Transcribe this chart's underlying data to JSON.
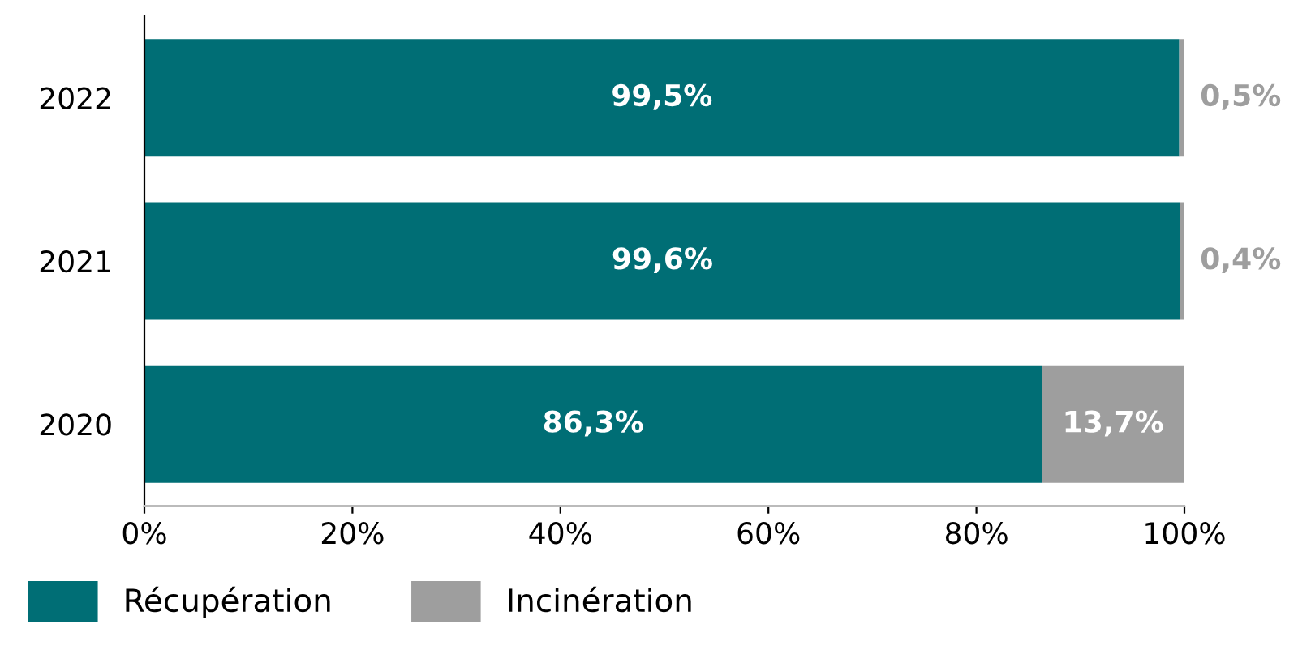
{
  "chart_data": {
    "type": "bar",
    "orientation": "horizontal",
    "stacked": true,
    "categories": [
      "2022",
      "2021",
      "2020"
    ],
    "series": [
      {
        "name": "Récupération",
        "color": "#006e75",
        "values": [
          99.5,
          99.6,
          86.3
        ],
        "value_labels": [
          "99,5%",
          "99,6%",
          "86,3%"
        ]
      },
      {
        "name": "Incinération",
        "color": "#9e9e9e",
        "values": [
          0.5,
          0.4,
          13.7
        ],
        "value_labels": [
          "0,5%",
          "0,4%",
          "13,7%"
        ]
      }
    ],
    "xlim": [
      0,
      100
    ],
    "xticks": [
      {
        "value": 0,
        "label": "0%"
      },
      {
        "value": 20,
        "label": "20%"
      },
      {
        "value": 40,
        "label": "40%"
      },
      {
        "value": 60,
        "label": "60%"
      },
      {
        "value": 80,
        "label": "80%"
      },
      {
        "value": 100,
        "label": "100%"
      }
    ],
    "grid": false,
    "legend": "bottom left"
  }
}
